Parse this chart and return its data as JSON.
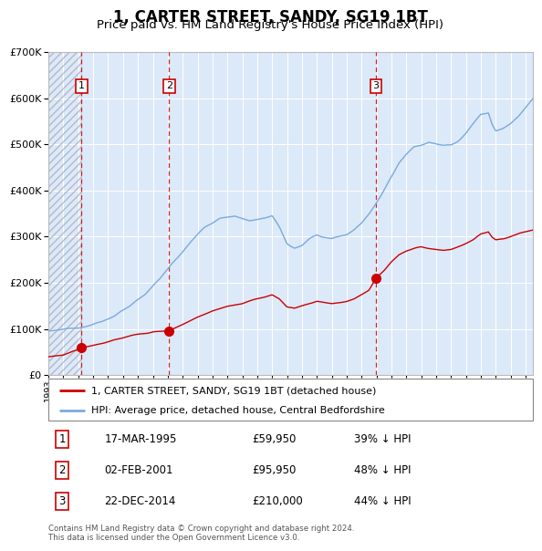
{
  "title": "1, CARTER STREET, SANDY, SG19 1BT",
  "subtitle": "Price paid vs. HM Land Registry's House Price Index (HPI)",
  "red_label": "1, CARTER STREET, SANDY, SG19 1BT (detached house)",
  "blue_label": "HPI: Average price, detached house, Central Bedfordshire",
  "transactions": [
    {
      "num": 1,
      "date": "17-MAR-1995",
      "price": 59950,
      "pct": "39%",
      "dir": "↓",
      "year_x": 1995.21
    },
    {
      "num": 2,
      "date": "02-FEB-2001",
      "price": 95950,
      "pct": "48%",
      "dir": "↓",
      "year_x": 2001.09
    },
    {
      "num": 3,
      "date": "22-DEC-2014",
      "price": 210000,
      "pct": "44%",
      "dir": "↓",
      "year_x": 2014.97
    }
  ],
  "copyright": "Contains HM Land Registry data © Crown copyright and database right 2024.\nThis data is licensed under the Open Government Licence v3.0.",
  "hatch_start": 1993.0,
  "hatch_end": 1995.21,
  "ylim": [
    0,
    700000
  ],
  "xlim_start": 1993.0,
  "xlim_end": 2025.5,
  "bg_color": "#dce9f8",
  "grid_color": "#ffffff",
  "red_line_color": "#cc0000",
  "blue_line_color": "#7aaadd",
  "dashed_color": "#cc0000",
  "title_fontsize": 12,
  "subtitle_fontsize": 10
}
